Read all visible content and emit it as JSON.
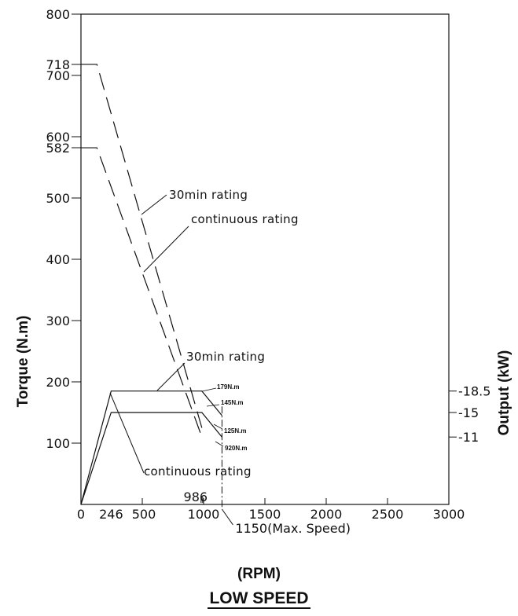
{
  "chart_data": {
    "type": "line",
    "y_axis_label": "Torque (N.m)",
    "y2_axis_label": "Output (kW)",
    "x_axis_label": "(RPM)",
    "caption": "LOW SPEED",
    "xlim": [
      0,
      3000
    ],
    "ylim": [
      0,
      800
    ],
    "x_ticks": [
      0,
      500,
      1000,
      1500,
      2000,
      2500,
      3000
    ],
    "x_tick_labels": [
      "0",
      "500",
      "1000",
      "1500",
      "2000",
      "2500",
      "3000"
    ],
    "x_extra_ticks": [
      {
        "value": 246,
        "label": "246"
      },
      {
        "value": 986,
        "label": "986"
      },
      {
        "value": 1150,
        "label": "1150(Max. Speed)"
      }
    ],
    "y_ticks": [
      100,
      200,
      300,
      400,
      500,
      600,
      700,
      800
    ],
    "y_tick_labels": [
      "100",
      "200",
      "300",
      "400",
      "500",
      "600",
      "700",
      "800"
    ],
    "y_extra_ticks": [
      {
        "value": 718,
        "label": "718"
      },
      {
        "value": 582,
        "label": "582"
      }
    ],
    "y2_ticks": [
      {
        "value": 185,
        "label": "18.5"
      },
      {
        "value": 150,
        "label": "15"
      },
      {
        "value": 110,
        "label": "11"
      }
    ],
    "series": [
      {
        "name": "30min rating",
        "kind": "torque",
        "dash": true,
        "points": [
          [
            0,
            718
          ],
          [
            130,
            718
          ],
          [
            986,
            125
          ]
        ]
      },
      {
        "name": "continuous rating",
        "kind": "torque",
        "dash": true,
        "points": [
          [
            0,
            582
          ],
          [
            130,
            582
          ],
          [
            986,
            110
          ]
        ]
      },
      {
        "name": "30min rating",
        "kind": "output",
        "dash": false,
        "points": [
          [
            0,
            0
          ],
          [
            246,
            185
          ],
          [
            986,
            185
          ],
          [
            1150,
            145
          ]
        ]
      },
      {
        "name": "continuous rating",
        "kind": "output",
        "dash": false,
        "points": [
          [
            0,
            0
          ],
          [
            246,
            150
          ],
          [
            986,
            150
          ],
          [
            1150,
            110
          ]
        ]
      }
    ],
    "annotations": [
      {
        "text": "30min rating",
        "x": 720,
        "y": 500
      },
      {
        "text": "continuous rating",
        "x": 900,
        "y": 455
      },
      {
        "text": "30min rating",
        "x": 830,
        "y": 238
      },
      {
        "text": "continuous rating",
        "x": 520,
        "y": 50
      }
    ],
    "point_labels": [
      "179N.m",
      "145N.m",
      "125N.m",
      "920N.m"
    ],
    "max_speed_marker": 1150,
    "grid": false
  }
}
